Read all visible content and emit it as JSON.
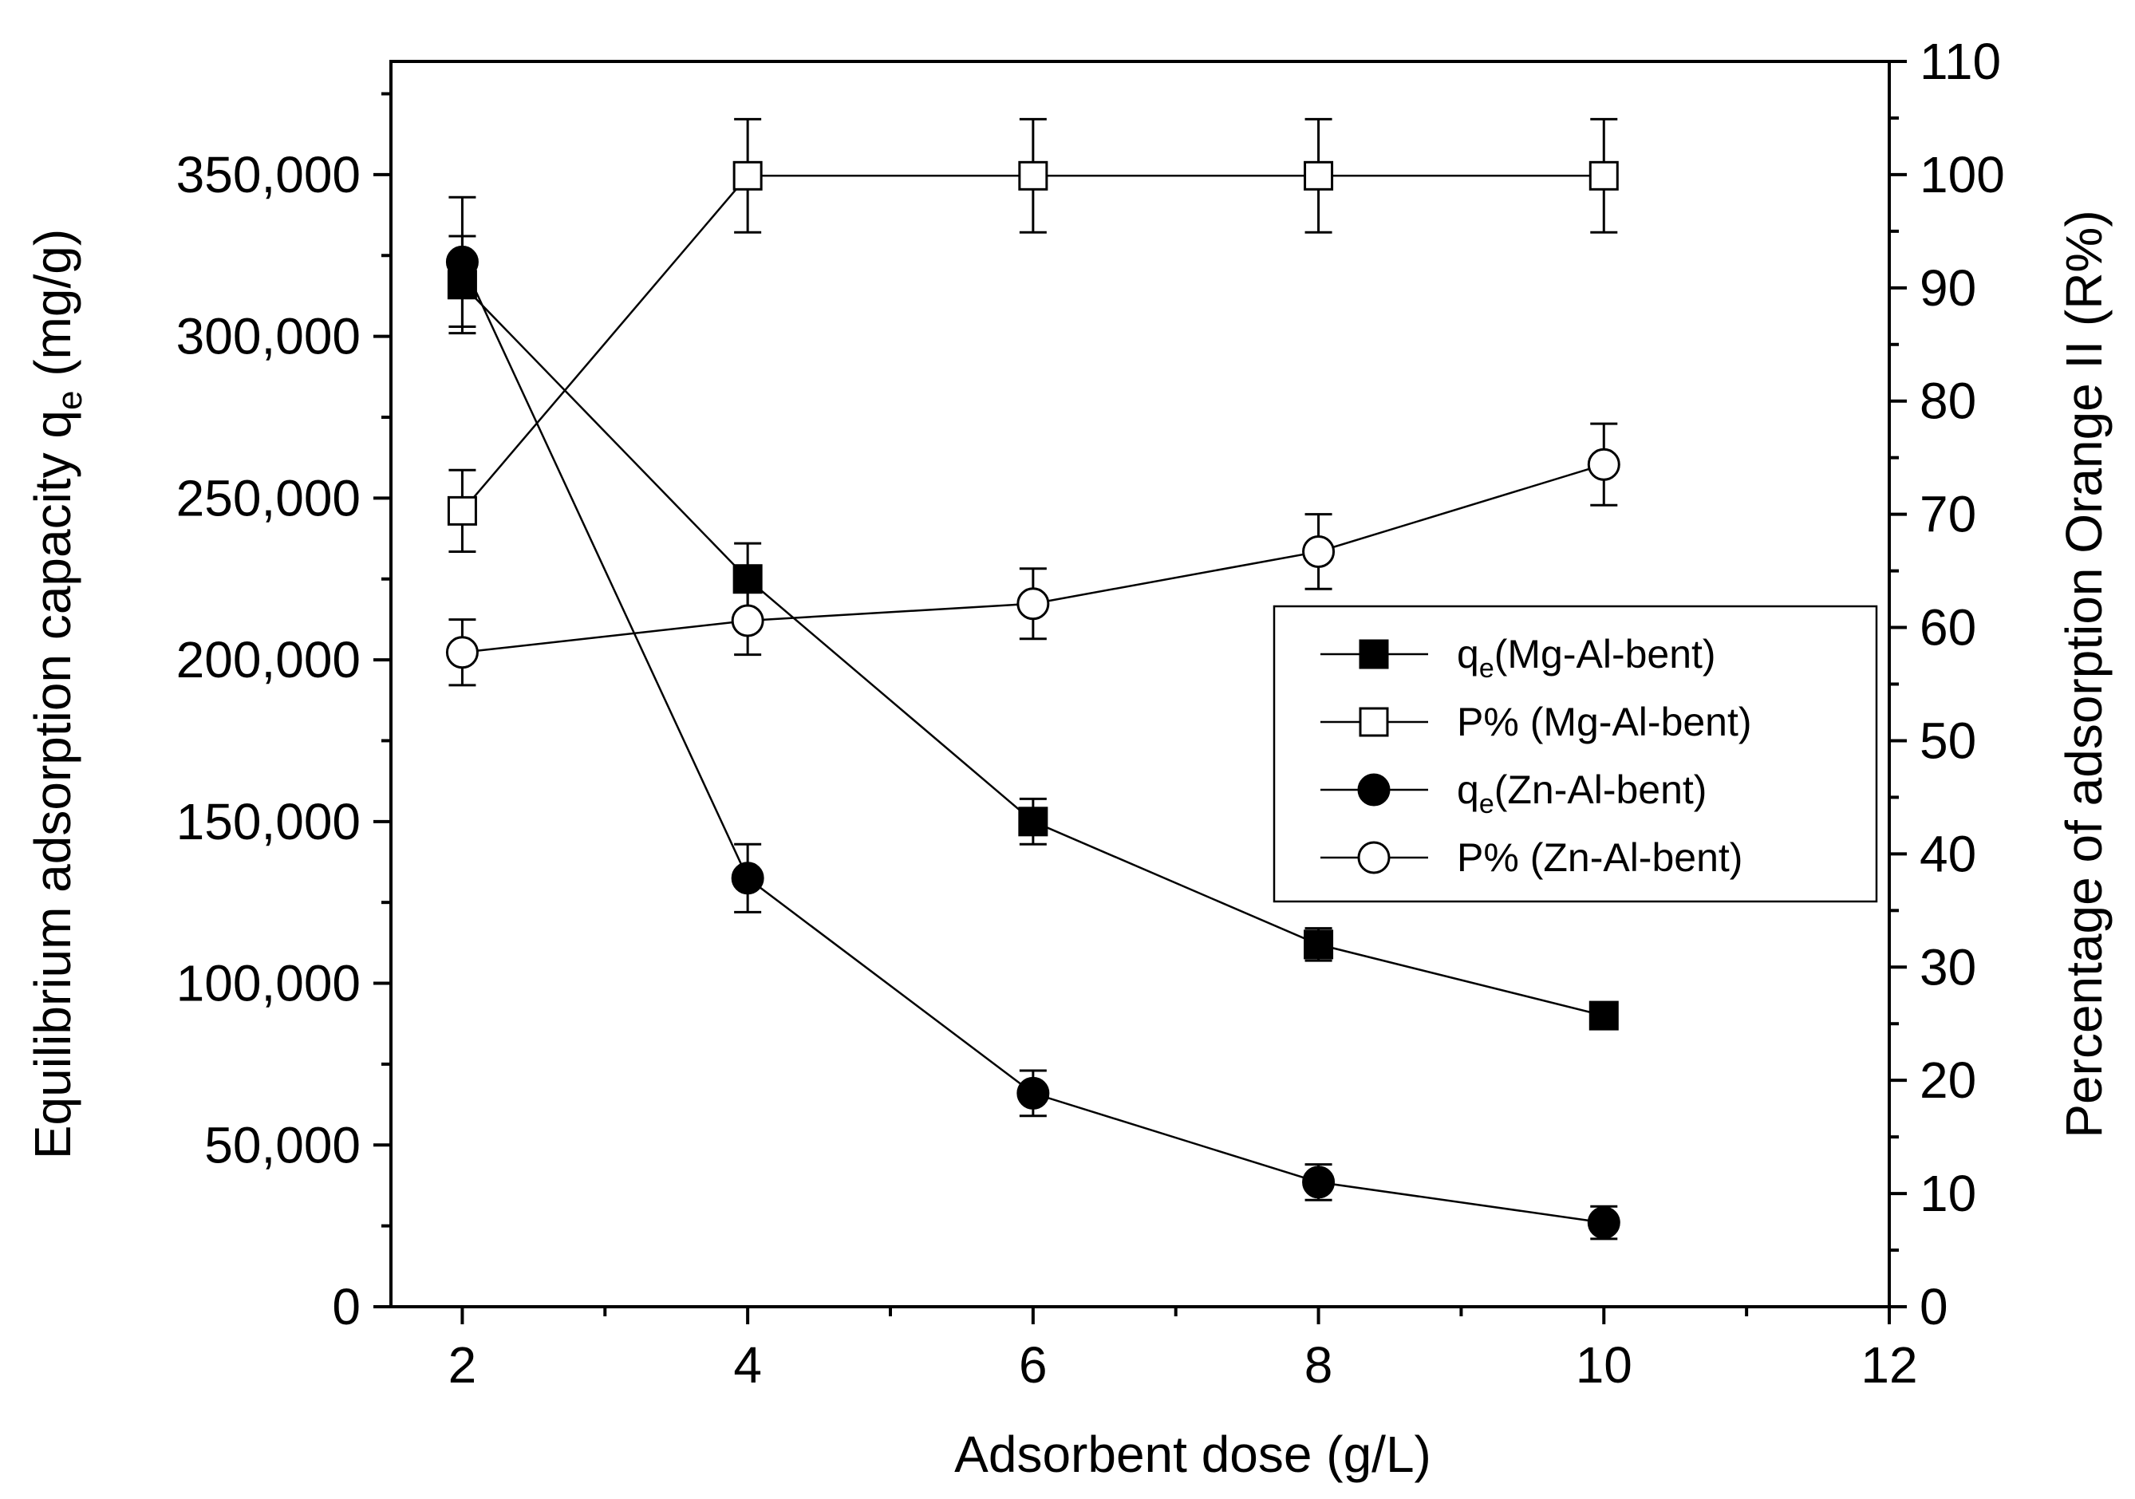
{
  "chart_data": {
    "type": "line",
    "title": "",
    "xlabel": "Adsorbent dose (g/L)",
    "ylabel_left": {
      "text": "Equilibrium adsorption capacity q",
      "sub": "e",
      "unit": " (mg/g)"
    },
    "ylabel_right": "Percentage of adsorption Orange II (R%)",
    "xlim": [
      1.5,
      12
    ],
    "xticks": [
      2,
      4,
      6,
      8,
      10,
      12
    ],
    "ylim_left": [
      0,
      385000
    ],
    "yticks_left": [
      0,
      50000,
      100000,
      150000,
      200000,
      250000,
      300000,
      350000
    ],
    "ytick_labels_left": [
      "0",
      "50,000",
      "100,000",
      "150,000",
      "200,000",
      "250,000",
      "300,000",
      "350,000"
    ],
    "ylim_right": [
      0,
      110
    ],
    "yticks_right": [
      0,
      10,
      20,
      30,
      40,
      50,
      60,
      70,
      80,
      90,
      100,
      110
    ],
    "x": [
      2,
      4,
      6,
      8,
      10
    ],
    "series": [
      {
        "name": "qe(Mg-Al-bent)",
        "label_main": "q",
        "label_sub": "e",
        "label_rest": "(Mg-Al-bent)",
        "axis": "left",
        "marker": "square",
        "filled": true,
        "values": [
          316000,
          225000,
          150000,
          112000,
          90000
        ],
        "errors": [
          15000,
          11000,
          7000,
          5000,
          3000
        ]
      },
      {
        "name": "P% (Mg-Al-bent)",
        "label_main": "P% (Mg-Al-bent)",
        "label_sub": "",
        "label_rest": "",
        "axis": "right",
        "marker": "square",
        "filled": false,
        "values": [
          70.3,
          99.9,
          99.9,
          99.9,
          99.9
        ],
        "errors": [
          3.6,
          5.0,
          5.0,
          5.0,
          5.0
        ]
      },
      {
        "name": "qe(Zn-Al-bent)",
        "label_main": "q",
        "label_sub": "e",
        "label_rest": "(Zn-Al-bent)",
        "axis": "left",
        "marker": "circle",
        "filled": true,
        "values": [
          323000,
          132500,
          66000,
          38500,
          26000
        ],
        "errors": [
          20000,
          10500,
          7000,
          5500,
          5000
        ]
      },
      {
        "name": "P% (Zn-Al-bent)",
        "label_main": "P% (Zn-Al-bent)",
        "label_sub": "",
        "label_rest": "",
        "axis": "right",
        "marker": "circle",
        "filled": false,
        "values": [
          57.8,
          60.6,
          62.1,
          66.7,
          74.4
        ],
        "errors": [
          2.9,
          3.0,
          3.1,
          3.3,
          3.6
        ]
      }
    ],
    "legend_position": "center-right",
    "grid": false
  }
}
